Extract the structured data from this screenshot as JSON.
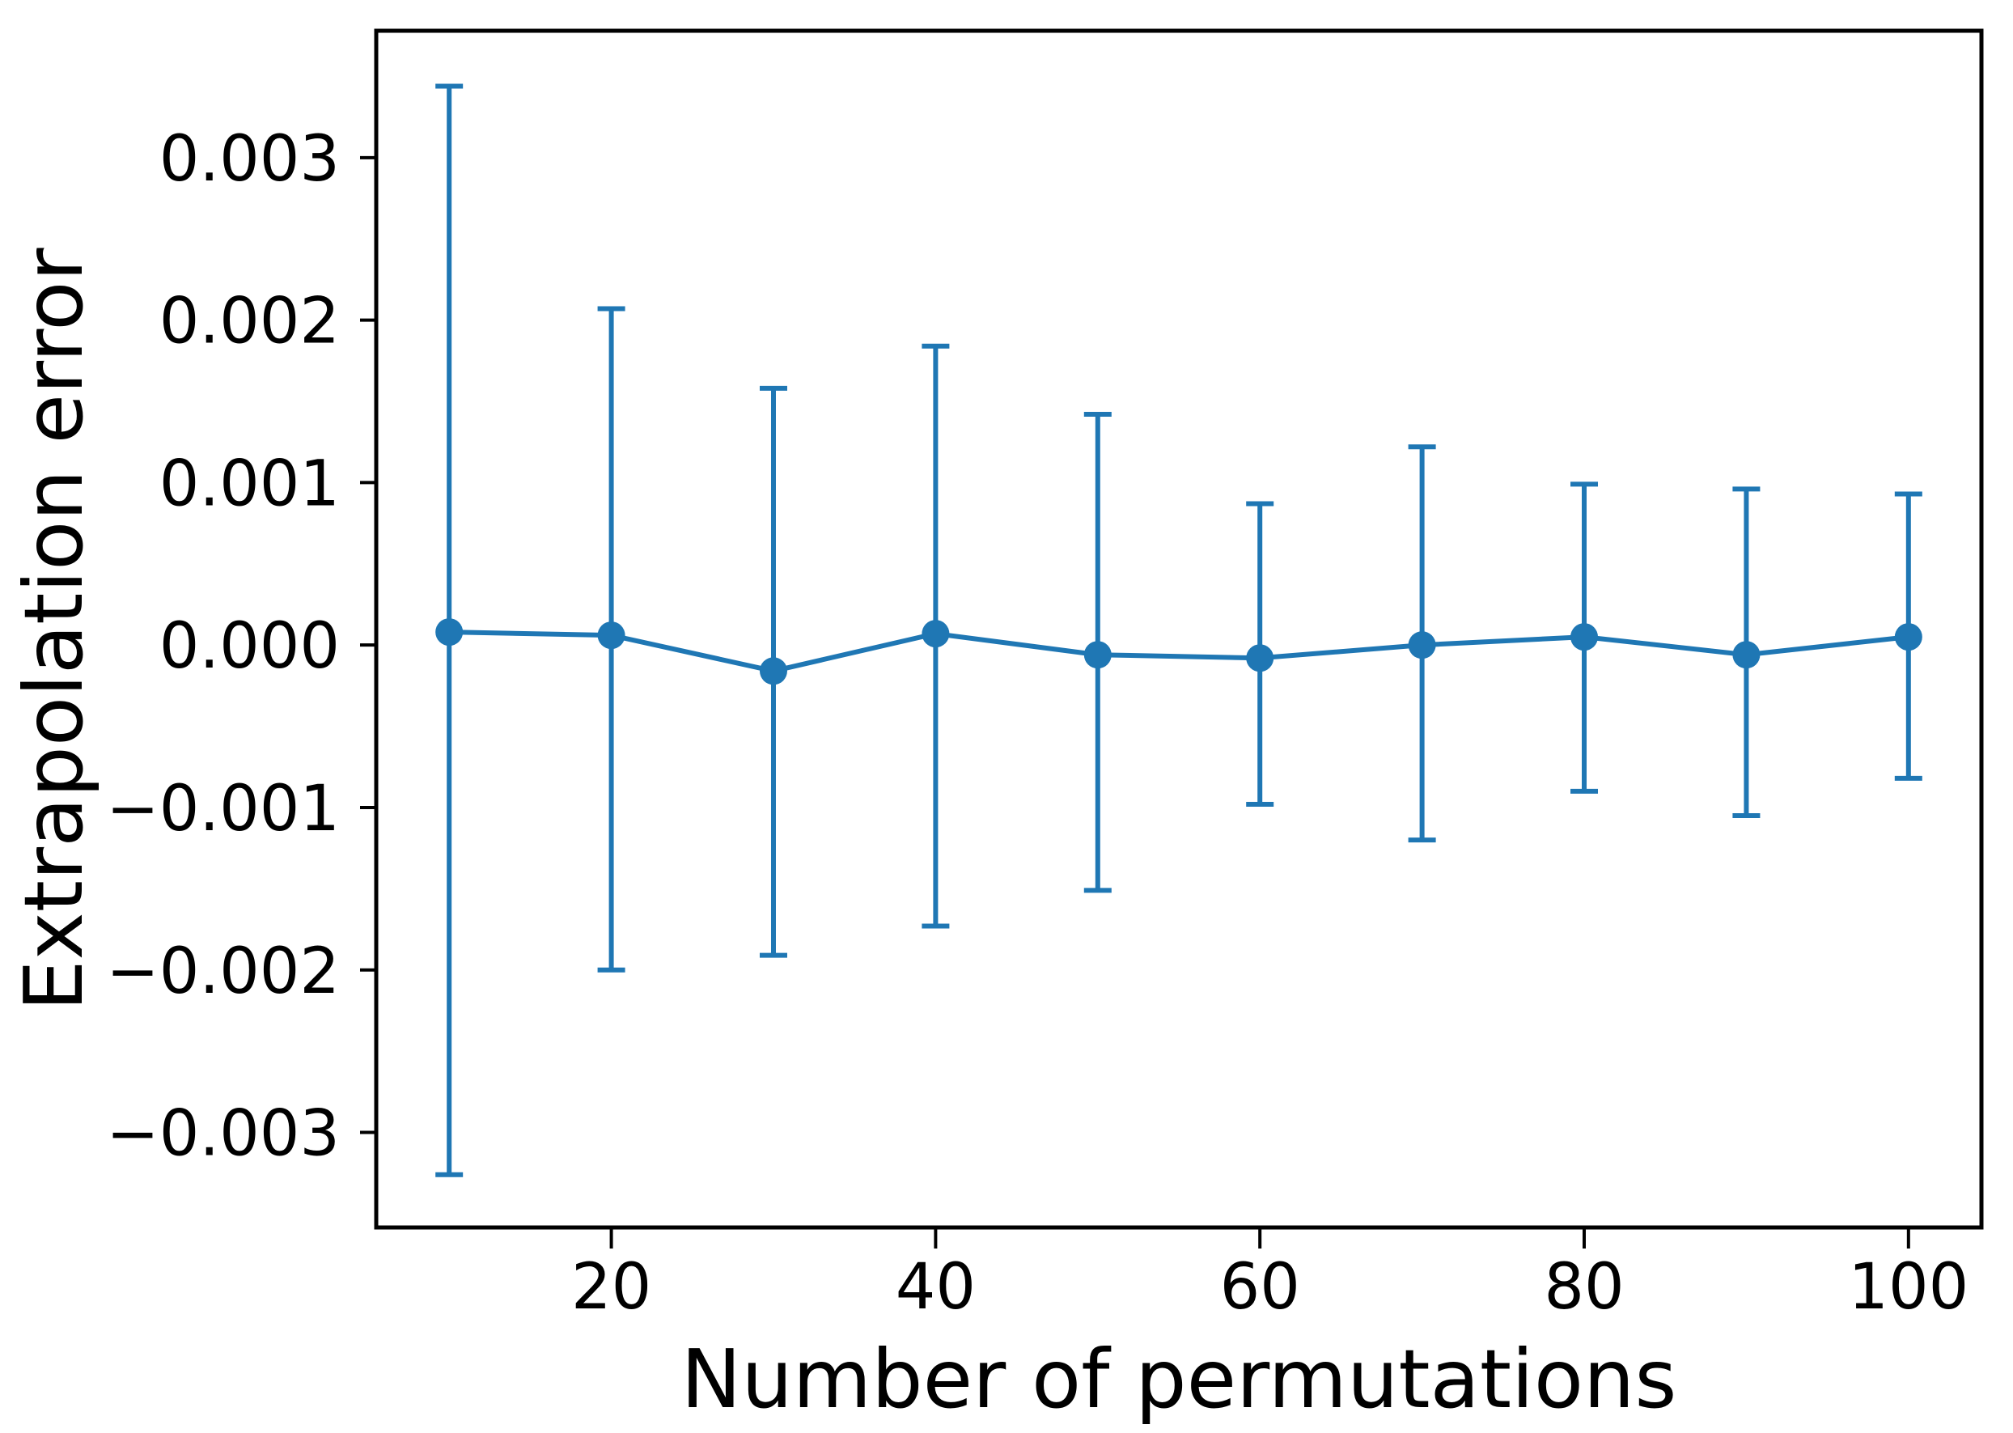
{
  "figure": {
    "background_color": "#ffffff"
  },
  "chart_data": {
    "type": "line",
    "subtype": "errorbar",
    "title": "",
    "xlabel": "Number of permutations",
    "ylabel": "Extrapolation error",
    "x": [
      10,
      20,
      30,
      40,
      50,
      60,
      70,
      80,
      90,
      100
    ],
    "y": [
      8e-05,
      6e-05,
      -0.00016,
      7e-05,
      -6e-05,
      -8e-05,
      0.0,
      5e-05,
      -6e-05,
      5e-05
    ],
    "y_upper": [
      0.00344,
      0.00207,
      0.00158,
      0.00184,
      0.00142,
      0.00087,
      0.00122,
      0.00099,
      0.00096,
      0.00093
    ],
    "y_lower": [
      -0.00326,
      -0.002,
      -0.00191,
      -0.00173,
      -0.00151,
      -0.00098,
      -0.0012,
      -0.0009,
      -0.00105,
      -0.00082
    ],
    "xlim": [
      5.5,
      104.5
    ],
    "ylim": [
      -0.003585,
      0.003781
    ],
    "xticks": {
      "values": [
        20,
        40,
        60,
        80,
        100
      ],
      "labels": [
        "20",
        "40",
        "60",
        "80",
        "100"
      ]
    },
    "yticks": {
      "values": [
        0.003,
        0.002,
        0.001,
        0.0,
        -0.001,
        -0.002,
        -0.003
      ],
      "labels": [
        "0.003",
        "0.002",
        "0.001",
        "0.000",
        "−0.001",
        "−0.002",
        "−0.003"
      ]
    },
    "grid": false,
    "legend": null,
    "marker": "circle",
    "colors": {
      "series": "#1f77b4",
      "spines": "#000000",
      "tick_text": "#000000",
      "label_text": "#000000"
    }
  }
}
